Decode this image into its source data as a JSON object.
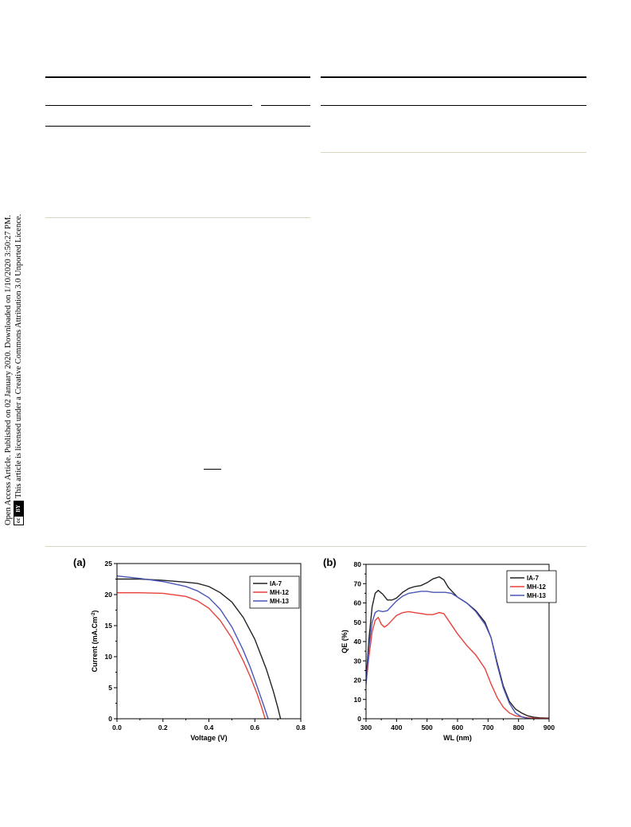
{
  "sidebar": {
    "line1": "Open Access Article. Published on 02 January 2020. Downloaded on 1/10/2020 3:50:27 PM.",
    "line2": "This article is licensed under a Creative Commons Attribution 3.0 Unported Licence.",
    "cc_label": "cc",
    "by_label": "BY"
  },
  "figure": {
    "panel_a_label": "(a)",
    "panel_b_label": "(b)"
  },
  "chart_data": [
    {
      "type": "line",
      "panel": "(a)",
      "xlabel": "Voltage (V)",
      "ylabel": "Current (mA.Cm",
      "ylabel_sup": "-2",
      "ylabel_close": ")",
      "xlim": [
        0.0,
        0.8
      ],
      "ylim": [
        0,
        25
      ],
      "xticks": [
        "0.0",
        "0.2",
        "0.4",
        "0.6",
        "0.8"
      ],
      "yticks": [
        "0",
        "5",
        "10",
        "15",
        "20",
        "25"
      ],
      "legend_position": "top-right",
      "series": [
        {
          "name": "IA-7",
          "color": "#222222",
          "x": [
            0.0,
            0.1,
            0.2,
            0.3,
            0.35,
            0.4,
            0.45,
            0.5,
            0.55,
            0.6,
            0.65,
            0.68,
            0.7,
            0.712
          ],
          "y": [
            22.5,
            22.5,
            22.3,
            22.0,
            21.8,
            21.3,
            20.3,
            18.8,
            16.3,
            12.8,
            8.0,
            4.5,
            1.8,
            0
          ]
        },
        {
          "name": "MH-12",
          "color": "#e8403a",
          "x": [
            0.0,
            0.1,
            0.2,
            0.3,
            0.35,
            0.4,
            0.45,
            0.5,
            0.55,
            0.58,
            0.61,
            0.63,
            0.645
          ],
          "y": [
            20.3,
            20.3,
            20.2,
            19.7,
            19.0,
            17.8,
            15.8,
            13.0,
            9.3,
            6.8,
            4.0,
            1.8,
            0
          ]
        },
        {
          "name": "MH-13",
          "color": "#4a56b8",
          "x": [
            0.0,
            0.1,
            0.2,
            0.3,
            0.35,
            0.4,
            0.45,
            0.5,
            0.55,
            0.58,
            0.61,
            0.64,
            0.658
          ],
          "y": [
            23.0,
            22.6,
            22.1,
            21.3,
            20.6,
            19.5,
            17.6,
            14.8,
            11.0,
            8.3,
            5.2,
            2.0,
            0
          ]
        }
      ]
    },
    {
      "type": "line",
      "panel": "(b)",
      "xlabel": "WL (nm)",
      "ylabel": "QE (%)",
      "xlim": [
        300,
        900
      ],
      "ylim": [
        0,
        80
      ],
      "xticks": [
        "300",
        "400",
        "500",
        "600",
        "700",
        "800",
        "900"
      ],
      "yticks": [
        "0",
        "10",
        "20",
        "30",
        "40",
        "50",
        "60",
        "70",
        "80"
      ],
      "legend_position": "top-right",
      "series": [
        {
          "name": "IA-7",
          "color": "#222222",
          "x": [
            300,
            310,
            320,
            330,
            340,
            355,
            370,
            385,
            400,
            420,
            440,
            460,
            480,
            500,
            520,
            540,
            555,
            570,
            600,
            630,
            660,
            690,
            710,
            730,
            750,
            770,
            790,
            810,
            830,
            850,
            870,
            900
          ],
          "y": [
            20,
            42,
            58,
            65,
            66.5,
            64.5,
            61.5,
            61.5,
            62.5,
            65.5,
            67.5,
            68.5,
            69,
            70.5,
            72.5,
            73.5,
            72,
            68,
            63,
            60,
            56,
            50,
            42,
            29,
            17,
            9,
            5,
            3,
            1.5,
            0.8,
            0.5,
            0.3
          ]
        },
        {
          "name": "MH-12",
          "color": "#e8403a",
          "x": [
            300,
            310,
            320,
            330,
            340,
            350,
            360,
            370,
            385,
            400,
            420,
            440,
            460,
            480,
            500,
            520,
            540,
            555,
            570,
            600,
            630,
            660,
            690,
            710,
            730,
            750,
            770,
            790,
            810,
            830,
            850,
            870,
            900
          ],
          "y": [
            18,
            33,
            45,
            51,
            52.5,
            49,
            47.5,
            48.5,
            51,
            53.5,
            55,
            55.5,
            55,
            54.5,
            54,
            54,
            55,
            54.5,
            51,
            44,
            38,
            33,
            26,
            18,
            11,
            6,
            3,
            1.5,
            1,
            0.5,
            0.3,
            0.2,
            0.1
          ]
        },
        {
          "name": "MH-13",
          "color": "#4a56b8",
          "x": [
            300,
            310,
            320,
            330,
            340,
            355,
            370,
            385,
            400,
            420,
            440,
            460,
            480,
            500,
            520,
            540,
            560,
            580,
            600,
            630,
            660,
            690,
            710,
            730,
            750,
            770,
            790,
            810,
            830,
            850,
            870,
            900
          ],
          "y": [
            18,
            38,
            50,
            55,
            56,
            55.5,
            56,
            58.5,
            61,
            63.5,
            65,
            65.5,
            66,
            66,
            65.5,
            65.5,
            65.5,
            65,
            63,
            60,
            55.5,
            49,
            42,
            28,
            16,
            8,
            3,
            1,
            0.2,
            -0.2,
            -0.4,
            -0.5
          ]
        }
      ]
    }
  ]
}
